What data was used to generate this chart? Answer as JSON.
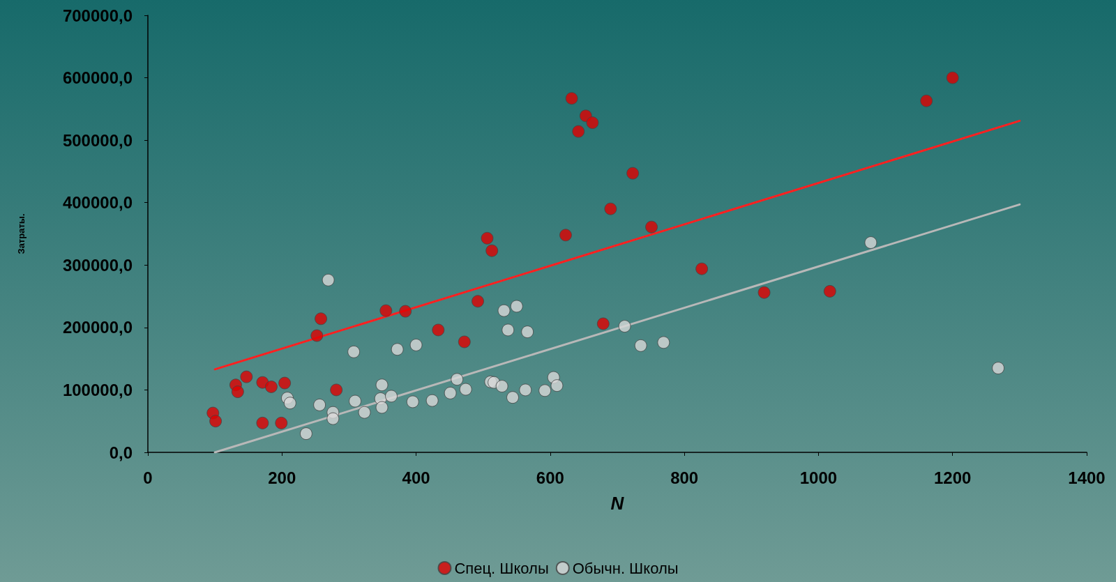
{
  "chart_data": {
    "type": "scatter",
    "xlabel": "N",
    "ylabel": "Затраты.",
    "xlim": [
      0,
      1400
    ],
    "xticks": [
      0,
      200,
      400,
      600,
      800,
      1000,
      1200,
      1400
    ],
    "ylim": [
      0,
      700000
    ],
    "yticks": [
      {
        "value": 0,
        "label": "0,0"
      },
      {
        "value": 100000,
        "label": "100000,0"
      },
      {
        "value": 200000,
        "label": "200000,0"
      },
      {
        "value": 300000,
        "label": "300000,0"
      },
      {
        "value": 400000,
        "label": "400000,0"
      },
      {
        "value": 500000,
        "label": "500000,0"
      },
      {
        "value": 600000,
        "label": "600000,0"
      },
      {
        "value": 700000,
        "label": "700000,0"
      }
    ],
    "grid": false,
    "legend": "bottom",
    "marker": "circle",
    "series": [
      {
        "name": "Спец. Школы",
        "color": "#e00000",
        "x": [
          97,
          101,
          131,
          134,
          147,
          171,
          171,
          184,
          199,
          204,
          252,
          258,
          281,
          355,
          384,
          433,
          472,
          492,
          506,
          513,
          623,
          632,
          642,
          653,
          663,
          679,
          690,
          723,
          751,
          826,
          919,
          1017,
          1161,
          1200
        ],
        "values": [
          63000,
          50000,
          108000,
          97000,
          121000,
          112000,
          47000,
          105000,
          47000,
          111000,
          187000,
          214000,
          100000,
          227000,
          226000,
          196000,
          177000,
          242000,
          343000,
          323000,
          348000,
          567000,
          514000,
          539000,
          528000,
          206000,
          390000,
          447000,
          361000,
          294000,
          256000,
          258000,
          563000,
          600000
        ]
      },
      {
        "name": "Обычн. Школы",
        "color": "#d8d8d8",
        "x": [
          269,
          208,
          212,
          236,
          256,
          276,
          276,
          307,
          309,
          323,
          349,
          347,
          349,
          363,
          372,
          395,
          400,
          424,
          451,
          461,
          474,
          511,
          516,
          528,
          531,
          537,
          544,
          550,
          563,
          566,
          592,
          605,
          610,
          711,
          735,
          769,
          1078,
          1268
        ],
        "values": [
          276000,
          87000,
          79000,
          30000,
          76000,
          64000,
          54000,
          161000,
          82000,
          64000,
          108000,
          86000,
          72000,
          90000,
          165000,
          81000,
          172000,
          83000,
          95000,
          117000,
          101000,
          113000,
          112000,
          106000,
          227000,
          196000,
          88000,
          234000,
          100000,
          193000,
          99000,
          120000,
          107000,
          202000,
          171000,
          176000,
          336000,
          135000
        ]
      },
      {
        "type": "line",
        "marker": "none",
        "color": "#ff2020",
        "x": [
          100,
          1300
        ],
        "values": [
          133000,
          531000
        ]
      },
      {
        "type": "line",
        "marker": "none",
        "color": "#b8b8b8",
        "x": [
          100,
          1300
        ],
        "values": [
          0,
          397000
        ]
      }
    ]
  }
}
